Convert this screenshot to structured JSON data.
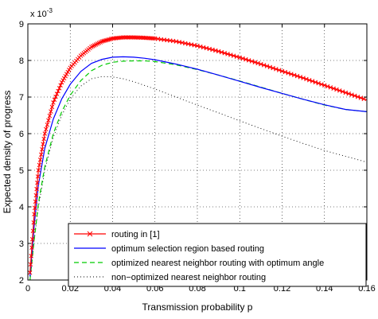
{
  "chart_data": {
    "type": "line",
    "xlabel": "Transmission probability p",
    "ylabel": "Expected density of progress",
    "exponent_label": "x 10",
    "exponent_power": "-3",
    "xlim": [
      0,
      0.16
    ],
    "ylim": [
      2,
      9
    ],
    "xticks": [
      0,
      0.02,
      0.04,
      0.06,
      0.08,
      0.1,
      0.12,
      0.14,
      0.16
    ],
    "xtick_labels": [
      "0",
      "0.02",
      "0.04",
      "0.06",
      "0.08",
      "0.1",
      "0.12",
      "0.14",
      "0.16"
    ],
    "yticks": [
      2,
      3,
      4,
      5,
      6,
      7,
      8,
      9
    ],
    "ytick_labels": [
      "2",
      "3",
      "4",
      "5",
      "6",
      "7",
      "8",
      "9"
    ],
    "grid": true,
    "legend_position": "bottom-right",
    "series": [
      {
        "name": "routing in [1]",
        "color": "#ff0000",
        "style": "solid",
        "marker": "x",
        "x": [
          0.001,
          0.003,
          0.005,
          0.008,
          0.012,
          0.016,
          0.02,
          0.025,
          0.03,
          0.035,
          0.04,
          0.045,
          0.05,
          0.055,
          0.06,
          0.07,
          0.08,
          0.09,
          0.1,
          0.11,
          0.12,
          0.13,
          0.14,
          0.15,
          0.16
        ],
        "y": [
          2.2,
          3.8,
          5.0,
          6.0,
          6.85,
          7.4,
          7.8,
          8.13,
          8.37,
          8.52,
          8.6,
          8.63,
          8.63,
          8.62,
          8.6,
          8.52,
          8.4,
          8.25,
          8.08,
          7.9,
          7.71,
          7.52,
          7.32,
          7.12,
          6.92
        ]
      },
      {
        "name": "optimum selection region based routing",
        "color": "#0000ff",
        "style": "solid",
        "marker": "none",
        "x": [
          0.001,
          0.003,
          0.005,
          0.008,
          0.012,
          0.016,
          0.02,
          0.025,
          0.03,
          0.035,
          0.04,
          0.045,
          0.05,
          0.055,
          0.06,
          0.07,
          0.08,
          0.09,
          0.1,
          0.11,
          0.12,
          0.13,
          0.14,
          0.15,
          0.16
        ],
        "y": [
          2.1,
          3.5,
          4.6,
          5.6,
          6.4,
          6.95,
          7.35,
          7.7,
          7.92,
          8.03,
          8.09,
          8.1,
          8.09,
          8.06,
          8.02,
          7.9,
          7.76,
          7.6,
          7.43,
          7.26,
          7.1,
          6.94,
          6.79,
          6.66,
          6.6
        ]
      },
      {
        "name": "optimized nearest neighbor routing with optimum angle",
        "color": "#00cc00",
        "style": "dashed",
        "marker": "none",
        "x": [
          0.001,
          0.003,
          0.005,
          0.008,
          0.012,
          0.016,
          0.02,
          0.025,
          0.03,
          0.035,
          0.04,
          0.045,
          0.05,
          0.055,
          0.06,
          0.07,
          0.08,
          0.09,
          0.1,
          0.11,
          0.12,
          0.13,
          0.14,
          0.15,
          0.16
        ],
        "y": [
          2.0,
          3.1,
          4.1,
          5.1,
          6.0,
          6.6,
          7.05,
          7.45,
          7.72,
          7.87,
          7.95,
          7.98,
          7.99,
          7.99,
          7.97,
          7.88,
          7.75,
          7.6,
          7.44,
          7.27,
          7.1,
          6.94,
          6.78,
          6.66,
          6.6
        ]
      },
      {
        "name": "non−optimized nearest neighbor routing",
        "color": "#000000",
        "style": "dotted",
        "marker": "none",
        "x": [
          0.001,
          0.003,
          0.005,
          0.008,
          0.012,
          0.016,
          0.02,
          0.025,
          0.03,
          0.035,
          0.04,
          0.045,
          0.05,
          0.055,
          0.06,
          0.07,
          0.08,
          0.09,
          0.1,
          0.11,
          0.12,
          0.13,
          0.14,
          0.15,
          0.16
        ],
        "y": [
          2.0,
          3.1,
          4.0,
          5.0,
          5.9,
          6.5,
          6.95,
          7.3,
          7.5,
          7.56,
          7.55,
          7.5,
          7.42,
          7.32,
          7.22,
          7.0,
          6.78,
          6.57,
          6.35,
          6.14,
          5.93,
          5.73,
          5.54,
          5.38,
          5.22
        ]
      }
    ]
  }
}
